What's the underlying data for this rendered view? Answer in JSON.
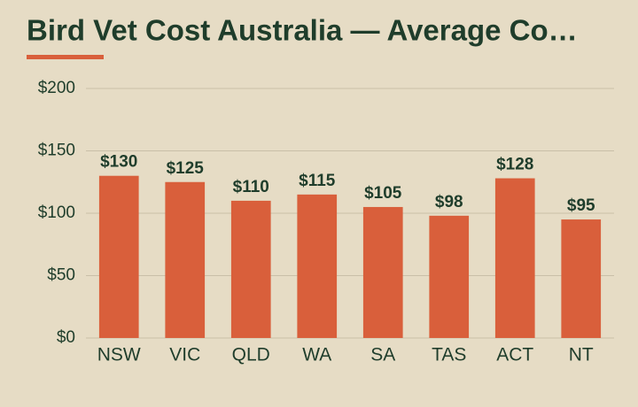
{
  "chart_data": {
    "type": "bar",
    "title": "Bird Vet Cost Australia — Average Co…",
    "categories": [
      "NSW",
      "VIC",
      "QLD",
      "WA",
      "SA",
      "TAS",
      "ACT",
      "NT"
    ],
    "values": [
      130,
      125,
      110,
      115,
      105,
      98,
      128,
      95
    ],
    "value_labels": [
      "$130",
      "$125",
      "$110",
      "$115",
      "$105",
      "$98",
      "$128",
      "$95"
    ],
    "color": "#d95f3b",
    "ylim": [
      0,
      200
    ],
    "yticks": [
      {
        "value": 0,
        "label": "$0"
      },
      {
        "value": 50,
        "label": "$50"
      },
      {
        "value": 100,
        "label": "$100"
      },
      {
        "value": 150,
        "label": "$150"
      },
      {
        "value": 200,
        "label": "$200"
      }
    ],
    "grid": true
  }
}
